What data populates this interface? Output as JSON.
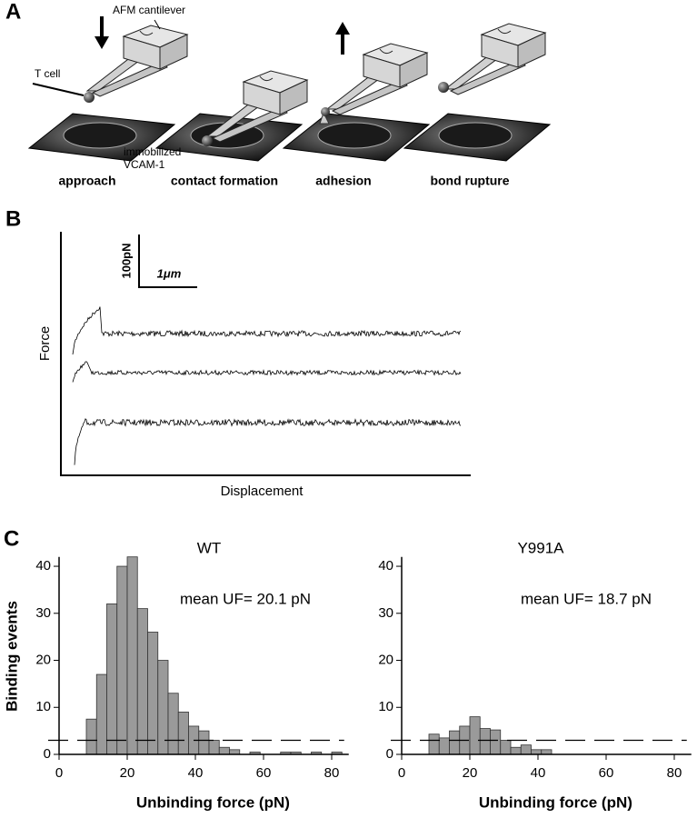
{
  "panel_a": {
    "label": "A",
    "cantilever_label": "AFM cantilever",
    "cell_label": "T cell",
    "surface_label": [
      "immobilized",
      "VCAM-1"
    ],
    "steps": [
      "approach",
      "contact formation",
      "adhesion",
      "bond rupture"
    ]
  },
  "panel_b": {
    "label": "B",
    "scale_force": "100pN",
    "scale_distance": "1μm",
    "ylabel": "Force",
    "xlabel": "Displacement"
  },
  "panel_c": {
    "label": "C"
  },
  "chart_data": [
    {
      "type": "histogram",
      "title": "WT",
      "annotation": "mean UF= 20.1 pN",
      "xlabel": "Unbinding force (pN)",
      "ylabel": "Binding events",
      "bins": [
        8,
        11,
        14,
        17,
        20,
        23,
        26,
        29,
        32,
        35,
        38,
        41,
        44,
        47,
        50,
        53,
        56,
        59,
        62,
        65,
        68,
        71,
        74,
        77,
        80,
        83
      ],
      "counts": [
        7.5,
        17,
        32,
        40,
        42,
        31,
        26,
        20,
        13,
        9,
        6,
        5,
        3,
        1.5,
        1,
        0,
        0.5,
        0,
        0,
        0.5,
        0.5,
        0,
        0.5,
        0,
        0.5
      ],
      "color": "#9a9a9a",
      "reference_line": 3,
      "xlim": [
        0,
        85
      ],
      "ylim": [
        0,
        42
      ],
      "xticks": [
        0,
        20,
        40,
        60,
        80
      ],
      "yticks": [
        0,
        10,
        20,
        30,
        40
      ]
    },
    {
      "type": "histogram",
      "title": "Y991A",
      "annotation": "mean UF= 18.7 pN",
      "xlabel": "Unbinding force (pN)",
      "bins": [
        8,
        11,
        14,
        17,
        20,
        23,
        26,
        29,
        32,
        35,
        38,
        41,
        44
      ],
      "counts": [
        4.3,
        3.5,
        5,
        6,
        8,
        5.5,
        5.2,
        3,
        1.5,
        2,
        1,
        1
      ],
      "color": "#9a9a9a",
      "reference_line": 3,
      "xlim": [
        0,
        85
      ],
      "ylim": [
        0,
        42
      ],
      "xticks": [
        0,
        20,
        40,
        60,
        80
      ],
      "yticks": [
        0,
        10,
        20,
        30,
        40
      ]
    }
  ]
}
